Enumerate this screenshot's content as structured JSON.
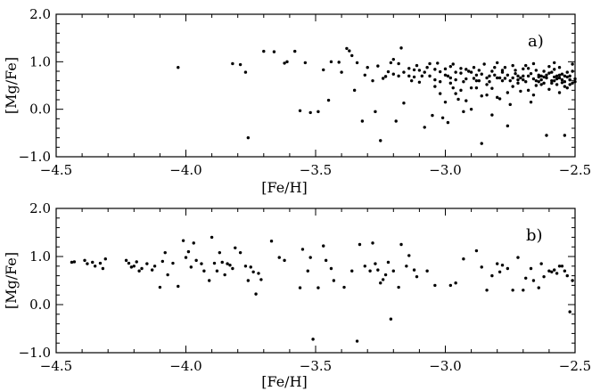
{
  "chart_data": [
    {
      "type": "scatter",
      "panel_label": "a)",
      "xlabel": "[Fe/H]",
      "ylabel": "[Mg/Fe]",
      "xlim": [
        -4.5,
        -2.5
      ],
      "ylim": [
        -1.0,
        2.0
      ],
      "xticks": [
        -4.5,
        -4.0,
        -3.5,
        -3.0,
        -2.5
      ],
      "xtick_labels": [
        "−4.5",
        "−4.0",
        "−3.5",
        "−3.0",
        "−2.5"
      ],
      "yticks": [
        -1.0,
        0.0,
        1.0,
        2.0
      ],
      "ytick_labels": [
        "−1.0",
        "0.0",
        "1.0",
        "2.0"
      ],
      "grid": false,
      "marker_color": "#000000",
      "points": [
        [
          -4.03,
          0.88
        ],
        [
          -3.82,
          0.96
        ],
        [
          -3.79,
          0.94
        ],
        [
          -3.77,
          0.78
        ],
        [
          -3.76,
          -0.6
        ],
        [
          -3.7,
          1.22
        ],
        [
          -3.66,
          1.21
        ],
        [
          -3.62,
          0.97
        ],
        [
          -3.61,
          1.0
        ],
        [
          -3.58,
          1.22
        ],
        [
          -3.56,
          -0.03
        ],
        [
          -3.54,
          0.98
        ],
        [
          -3.52,
          -0.07
        ],
        [
          -3.49,
          -0.05
        ],
        [
          -3.47,
          0.83
        ],
        [
          -3.45,
          0.19
        ],
        [
          -3.44,
          1.0
        ],
        [
          -3.41,
          0.99
        ],
        [
          -3.4,
          0.78
        ],
        [
          -3.38,
          1.28
        ],
        [
          -3.37,
          1.23
        ],
        [
          -3.36,
          1.13
        ],
        [
          -3.35,
          0.4
        ],
        [
          -3.34,
          0.98
        ],
        [
          -3.32,
          -0.25
        ],
        [
          -3.31,
          0.72
        ],
        [
          -3.3,
          0.88
        ],
        [
          -3.28,
          0.6
        ],
        [
          -3.27,
          -0.05
        ],
        [
          -3.26,
          0.91
        ],
        [
          -3.25,
          -0.66
        ],
        [
          -3.24,
          0.65
        ],
        [
          -3.23,
          0.69
        ],
        [
          -3.22,
          0.79
        ],
        [
          -3.21,
          0.98
        ],
        [
          -3.2,
          1.05
        ],
        [
          -3.19,
          -0.25
        ],
        [
          -3.18,
          0.96
        ],
        [
          -3.17,
          1.29
        ],
        [
          -3.16,
          0.13
        ],
        [
          -3.12,
          0.83
        ],
        [
          -3.1,
          0.57
        ],
        [
          -3.08,
          -0.38
        ],
        [
          -3.07,
          0.88
        ],
        [
          -3.06,
          0.96
        ],
        [
          -3.05,
          -0.13
        ],
        [
          -3.04,
          0.62
        ],
        [
          -3.03,
          0.97
        ],
        [
          -3.02,
          0.79
        ],
        [
          -3.01,
          -0.18
        ],
        [
          -3.0,
          0.85
        ],
        [
          -2.99,
          -0.28
        ],
        [
          -2.98,
          0.9
        ],
        [
          -2.97,
          0.95
        ],
        [
          -2.96,
          0.33
        ],
        [
          -2.95,
          0.21
        ],
        [
          -2.94,
          0.76
        ],
        [
          -2.93,
          -0.05
        ],
        [
          -2.92,
          0.64
        ],
        [
          -2.91,
          0.8
        ],
        [
          -2.9,
          0.45
        ],
        [
          -2.89,
          0.88
        ],
        [
          -2.88,
          0.72
        ],
        [
          -2.87,
          0.6
        ],
        [
          -2.86,
          -0.72
        ],
        [
          -2.85,
          0.95
        ],
        [
          -2.84,
          0.3
        ],
        [
          -2.83,
          0.7
        ],
        [
          -2.82,
          -0.12
        ],
        [
          -2.81,
          0.88
        ],
        [
          -2.8,
          0.98
        ],
        [
          -2.79,
          0.22
        ],
        [
          -2.78,
          0.78
        ],
        [
          -2.77,
          0.65
        ],
        [
          -2.76,
          -0.35
        ],
        [
          -2.75,
          0.1
        ],
        [
          -2.74,
          0.92
        ],
        [
          -2.73,
          0.75
        ],
        [
          -2.72,
          0.55
        ],
        [
          -2.71,
          0.38
        ],
        [
          -2.7,
          0.85
        ],
        [
          -2.69,
          0.92
        ],
        [
          -2.68,
          0.7
        ],
        [
          -2.67,
          0.15
        ],
        [
          -2.66,
          0.96
        ],
        [
          -2.65,
          0.5
        ],
        [
          -2.64,
          0.68
        ],
        [
          -2.63,
          0.62
        ],
        [
          -2.62,
          0.8
        ],
        [
          -2.61,
          -0.55
        ],
        [
          -2.6,
          0.76
        ],
        [
          -2.59,
          0.55
        ],
        [
          -2.58,
          0.98
        ],
        [
          -2.57,
          0.7
        ],
        [
          -2.56,
          0.88
        ],
        [
          -2.55,
          0.74
        ],
        [
          -2.54,
          -0.55
        ],
        [
          -2.53,
          0.78
        ],
        [
          -2.52,
          0.62
        ],
        [
          -2.51,
          0.95
        ],
        [
          -3.14,
          0.7
        ],
        [
          -3.13,
          0.6
        ],
        [
          -3.11,
          0.92
        ],
        [
          -3.09,
          0.7
        ],
        [
          -3.04,
          0.48
        ],
        [
          -3.02,
          0.33
        ],
        [
          -3.0,
          0.15
        ],
        [
          -2.98,
          0.55
        ],
        [
          -2.96,
          0.62
        ],
        [
          -2.94,
          0.4
        ],
        [
          -2.92,
          0.18
        ],
        [
          -2.9,
          0.0
        ],
        [
          -2.88,
          0.45
        ],
        [
          -2.86,
          0.28
        ],
        [
          -2.84,
          0.52
        ],
        [
          -2.82,
          0.44
        ],
        [
          -2.8,
          0.25
        ],
        [
          -2.78,
          0.6
        ],
        [
          -2.76,
          0.35
        ],
        [
          -2.74,
          0.48
        ],
        [
          -2.72,
          0.7
        ],
        [
          -2.7,
          0.62
        ],
        [
          -2.68,
          0.4
        ],
        [
          -2.66,
          0.3
        ],
        [
          -2.64,
          0.72
        ],
        [
          -2.62,
          0.55
        ],
        [
          -2.6,
          0.42
        ],
        [
          -2.58,
          0.6
        ],
        [
          -2.56,
          0.35
        ],
        [
          -2.54,
          0.48
        ],
        [
          -2.52,
          0.7
        ],
        [
          -2.5,
          0.58
        ],
        [
          -2.99,
          0.7
        ],
        [
          -2.97,
          0.45
        ],
        [
          -2.93,
          0.58
        ],
        [
          -2.89,
          0.65
        ],
        [
          -2.87,
          0.82
        ],
        [
          -2.83,
          0.58
        ],
        [
          -2.81,
          0.72
        ],
        [
          -2.79,
          0.66
        ],
        [
          -2.77,
          0.88
        ],
        [
          -2.75,
          0.6
        ],
        [
          -2.73,
          0.82
        ],
        [
          -2.71,
          0.66
        ],
        [
          -2.69,
          0.58
        ],
        [
          -2.67,
          0.75
        ],
        [
          -2.65,
          0.82
        ],
        [
          -2.63,
          0.52
        ],
        [
          -2.61,
          0.66
        ],
        [
          -2.59,
          0.78
        ],
        [
          -2.57,
          0.52
        ],
        [
          -2.55,
          0.62
        ],
        [
          -2.53,
          0.45
        ],
        [
          -2.51,
          0.8
        ],
        [
          -2.6,
          0.9
        ],
        [
          -2.58,
          0.84
        ],
        [
          -2.56,
          0.66
        ],
        [
          -2.54,
          0.58
        ],
        [
          -2.52,
          0.52
        ],
        [
          -2.5,
          0.64
        ],
        [
          -2.62,
          0.68
        ],
        [
          -2.64,
          0.58
        ],
        [
          -2.66,
          0.64
        ],
        [
          -2.68,
          0.86
        ],
        [
          -2.7,
          0.7
        ],
        [
          -2.72,
          0.62
        ],
        [
          -2.74,
          0.66
        ],
        [
          -2.76,
          0.72
        ],
        [
          -2.78,
          0.82
        ],
        [
          -2.8,
          0.66
        ],
        [
          -2.82,
          0.8
        ],
        [
          -2.84,
          0.66
        ],
        [
          -2.86,
          0.74
        ],
        [
          -2.88,
          0.6
        ],
        [
          -2.9,
          0.78
        ],
        [
          -2.92,
          0.84
        ],
        [
          -2.94,
          0.86
        ],
        [
          -2.96,
          0.78
        ],
        [
          -2.98,
          0.66
        ],
        [
          -3.0,
          0.72
        ],
        [
          -3.02,
          0.58
        ],
        [
          -3.04,
          0.84
        ],
        [
          -3.06,
          0.7
        ],
        [
          -3.08,
          0.78
        ],
        [
          -3.1,
          0.82
        ],
        [
          -3.12,
          0.68
        ],
        [
          -3.14,
          0.86
        ],
        [
          -3.16,
          0.78
        ],
        [
          -3.18,
          0.7
        ],
        [
          -3.2,
          0.74
        ],
        [
          -2.51,
          0.55
        ],
        [
          -2.52,
          0.62
        ],
        [
          -2.53,
          0.68
        ],
        [
          -2.54,
          0.7
        ],
        [
          -2.55,
          0.56
        ],
        [
          -2.56,
          0.72
        ],
        [
          -2.57,
          0.64
        ],
        [
          -2.58,
          0.68
        ],
        [
          -2.59,
          0.6
        ],
        [
          -2.61,
          0.72
        ],
        [
          -2.63,
          0.7
        ],
        [
          -2.65,
          0.6
        ]
      ]
    },
    {
      "type": "scatter",
      "panel_label": "b)",
      "xlabel": "[Fe/H]",
      "ylabel": "[Mg/Fe]",
      "xlim": [
        -4.5,
        -2.5
      ],
      "ylim": [
        -1.0,
        2.0
      ],
      "xticks": [
        -4.5,
        -4.0,
        -3.5,
        -3.0,
        -2.5
      ],
      "xtick_labels": [
        "−4.5",
        "−4.0",
        "−3.5",
        "−3.0",
        "−2.5"
      ],
      "yticks": [
        -1.0,
        0.0,
        1.0,
        2.0
      ],
      "ytick_labels": [
        "−1.0",
        "0.0",
        "1.0",
        "2.0"
      ],
      "grid": false,
      "marker_color": "#000000",
      "points": [
        [
          -4.44,
          0.88
        ],
        [
          -4.43,
          0.89
        ],
        [
          -4.39,
          0.92
        ],
        [
          -4.38,
          0.85
        ],
        [
          -4.36,
          0.88
        ],
        [
          -4.35,
          0.8
        ],
        [
          -4.33,
          0.86
        ],
        [
          -4.32,
          0.75
        ],
        [
          -4.31,
          0.95
        ],
        [
          -4.23,
          0.92
        ],
        [
          -4.22,
          0.86
        ],
        [
          -4.2,
          0.8
        ],
        [
          -4.19,
          0.89
        ],
        [
          -4.17,
          0.75
        ],
        [
          -4.15,
          0.85
        ],
        [
          -4.13,
          0.72
        ],
        [
          -4.12,
          0.8
        ],
        [
          -4.1,
          0.36
        ],
        [
          -4.09,
          0.9
        ],
        [
          -4.08,
          1.08
        ],
        [
          -4.07,
          0.62
        ],
        [
          -4.05,
          0.86
        ],
        [
          -4.03,
          0.38
        ],
        [
          -4.01,
          1.33
        ],
        [
          -4.0,
          0.98
        ],
        [
          -3.99,
          1.1
        ],
        [
          -3.98,
          0.78
        ],
        [
          -3.97,
          1.28
        ],
        [
          -3.96,
          0.92
        ],
        [
          -3.94,
          0.85
        ],
        [
          -3.93,
          0.7
        ],
        [
          -3.91,
          0.5
        ],
        [
          -3.9,
          1.4
        ],
        [
          -3.89,
          0.86
        ],
        [
          -3.88,
          0.7
        ],
        [
          -3.87,
          1.08
        ],
        [
          -3.86,
          0.88
        ],
        [
          -3.85,
          0.62
        ],
        [
          -3.84,
          0.85
        ],
        [
          -3.83,
          0.82
        ],
        [
          -3.82,
          0.75
        ],
        [
          -3.81,
          1.18
        ],
        [
          -3.79,
          1.08
        ],
        [
          -3.77,
          0.8
        ],
        [
          -3.76,
          0.5
        ],
        [
          -3.75,
          0.78
        ],
        [
          -3.74,
          0.68
        ],
        [
          -3.73,
          0.22
        ],
        [
          -3.72,
          0.65
        ],
        [
          -3.71,
          0.52
        ],
        [
          -3.67,
          1.32
        ],
        [
          -3.64,
          0.98
        ],
        [
          -3.62,
          0.92
        ],
        [
          -3.56,
          0.35
        ],
        [
          -3.55,
          1.15
        ],
        [
          -3.53,
          0.7
        ],
        [
          -3.52,
          0.98
        ],
        [
          -3.51,
          -0.72
        ],
        [
          -3.49,
          0.35
        ],
        [
          -3.47,
          1.22
        ],
        [
          -3.46,
          0.92
        ],
        [
          -3.44,
          0.75
        ],
        [
          -3.43,
          0.5
        ],
        [
          -3.39,
          0.36
        ],
        [
          -3.36,
          0.7
        ],
        [
          -3.34,
          -0.76
        ],
        [
          -3.33,
          1.25
        ],
        [
          -3.31,
          0.8
        ],
        [
          -3.29,
          0.7
        ],
        [
          -3.28,
          1.28
        ],
        [
          -3.27,
          0.85
        ],
        [
          -3.26,
          0.72
        ],
        [
          -3.25,
          0.45
        ],
        [
          -3.24,
          0.52
        ],
        [
          -3.23,
          0.62
        ],
        [
          -3.22,
          0.88
        ],
        [
          -3.21,
          -0.3
        ],
        [
          -3.2,
          0.7
        ],
        [
          -3.18,
          0.36
        ],
        [
          -3.17,
          1.25
        ],
        [
          -3.15,
          0.8
        ],
        [
          -3.14,
          1.02
        ],
        [
          -3.12,
          0.72
        ],
        [
          -3.11,
          0.58
        ],
        [
          -3.07,
          0.7
        ],
        [
          -3.04,
          0.4
        ],
        [
          -2.98,
          0.4
        ],
        [
          -2.96,
          0.45
        ],
        [
          -2.93,
          0.95
        ],
        [
          -2.88,
          1.12
        ],
        [
          -2.84,
          0.3
        ],
        [
          -2.79,
          0.68
        ],
        [
          -2.78,
          0.82
        ],
        [
          -2.76,
          0.75
        ],
        [
          -2.74,
          0.3
        ],
        [
          -2.72,
          0.98
        ],
        [
          -2.7,
          0.3
        ],
        [
          -2.67,
          0.75
        ],
        [
          -2.64,
          0.35
        ],
        [
          -2.63,
          0.85
        ],
        [
          -2.6,
          0.7
        ],
        [
          -2.58,
          0.72
        ],
        [
          -2.56,
          0.8
        ],
        [
          -2.55,
          0.8
        ],
        [
          -2.54,
          0.7
        ],
        [
          -2.53,
          0.6
        ],
        [
          -2.52,
          -0.15
        ],
        [
          -2.51,
          0.5
        ],
        [
          -2.57,
          0.65
        ],
        [
          -2.59,
          0.68
        ],
        [
          -2.62,
          0.58
        ],
        [
          -2.66,
          0.5
        ],
        [
          -2.69,
          0.55
        ],
        [
          -2.8,
          0.85
        ],
        [
          -2.82,
          0.6
        ],
        [
          -2.86,
          0.78
        ],
        [
          -4.18,
          0.7
        ],
        [
          -4.21,
          0.78
        ]
      ]
    }
  ]
}
